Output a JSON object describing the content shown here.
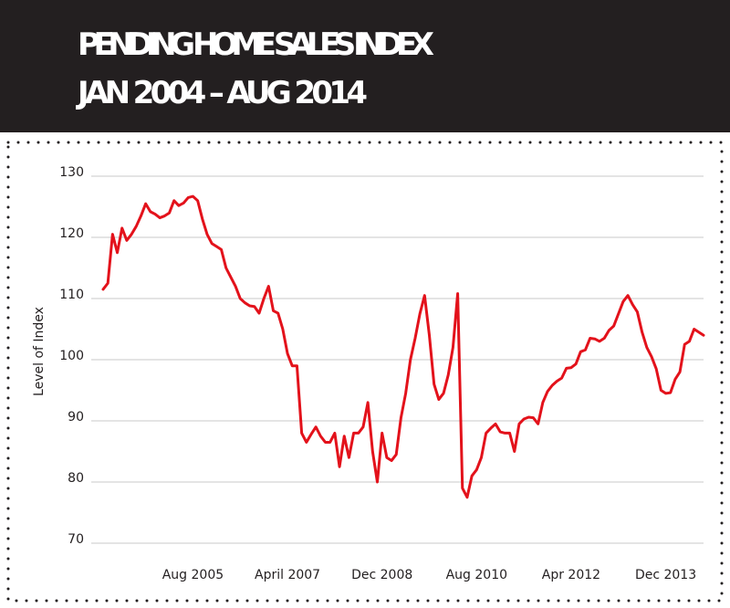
{
  "chart_data": {
    "type": "line",
    "title": "PENDING HOME SALES INDEX",
    "subtitle": "JAN 2004 – AUG 2014",
    "y_label": "Level of Index",
    "color": "#e3121b",
    "grid": true,
    "x": [
      "2004-01",
      "2004-02",
      "2004-03",
      "2004-04",
      "2004-05",
      "2004-06",
      "2004-07",
      "2004-08",
      "2004-09",
      "2004-10",
      "2004-11",
      "2004-12",
      "2005-01",
      "2005-02",
      "2005-03",
      "2005-04",
      "2005-05",
      "2005-06",
      "2005-07",
      "2005-08",
      "2005-09",
      "2005-10",
      "2005-11",
      "2005-12",
      "2006-01",
      "2006-02",
      "2006-03",
      "2006-04",
      "2006-05",
      "2006-06",
      "2006-07",
      "2006-08",
      "2006-09",
      "2006-10",
      "2006-11",
      "2006-12",
      "2007-01",
      "2007-02",
      "2007-03",
      "2007-04",
      "2007-05",
      "2007-06",
      "2007-07",
      "2007-08",
      "2007-09",
      "2007-10",
      "2007-11",
      "2007-12",
      "2008-01",
      "2008-02",
      "2008-03",
      "2008-04",
      "2008-05",
      "2008-06",
      "2008-07",
      "2008-08",
      "2008-09",
      "2008-10",
      "2008-11",
      "2008-12",
      "2009-01",
      "2009-02",
      "2009-03",
      "2009-04",
      "2009-05",
      "2009-06",
      "2009-07",
      "2009-08",
      "2009-09",
      "2009-10",
      "2009-11",
      "2009-12",
      "2010-01",
      "2010-02",
      "2010-03",
      "2010-04",
      "2010-05",
      "2010-06",
      "2010-07",
      "2010-08",
      "2010-09",
      "2010-10",
      "2010-11",
      "2010-12",
      "2011-01",
      "2011-02",
      "2011-03",
      "2011-04",
      "2011-05",
      "2011-06",
      "2011-07",
      "2011-08",
      "2011-09",
      "2011-10",
      "2011-11",
      "2011-12",
      "2012-01",
      "2012-02",
      "2012-03",
      "2012-04",
      "2012-05",
      "2012-06",
      "2012-07",
      "2012-08",
      "2012-09",
      "2012-10",
      "2012-11",
      "2012-12",
      "2013-01",
      "2013-02",
      "2013-03",
      "2013-04",
      "2013-05",
      "2013-06",
      "2013-07",
      "2013-08",
      "2013-09",
      "2013-10",
      "2013-11",
      "2013-12",
      "2014-01",
      "2014-02",
      "2014-03",
      "2014-04",
      "2014-05",
      "2014-06",
      "2014-07",
      "2014-08"
    ],
    "values": [
      111.5,
      112.5,
      120.5,
      117.5,
      121.5,
      119.5,
      120.5,
      121.8,
      123.5,
      125.5,
      124.2,
      123.8,
      123.2,
      123.5,
      124,
      126,
      125.2,
      125.6,
      126.5,
      126.7,
      126,
      123,
      120.5,
      119,
      118.5,
      118,
      115,
      113.5,
      112,
      110,
      109.3,
      108.8,
      108.7,
      107.6,
      110,
      112,
      108,
      107.6,
      105,
      101,
      99,
      99,
      88,
      86.5,
      87.8,
      89,
      87.5,
      86.5,
      86.5,
      88,
      82.5,
      87.5,
      84,
      88,
      88,
      89,
      93,
      85,
      80,
      88,
      84,
      83.5,
      84.5,
      90.5,
      94.5,
      100,
      103.5,
      107.5,
      110.5,
      104,
      96,
      93.5,
      94.5,
      97.5,
      102,
      110.8,
      79,
      77.5,
      81,
      82,
      84,
      88,
      88.8,
      89.5,
      88.2,
      88,
      88,
      85,
      89.5,
      90.3,
      90.6,
      90.5,
      89.5,
      93,
      94.8,
      95.8,
      96.5,
      97,
      98.6,
      98.7,
      99.3,
      101.3,
      101.6,
      103.5,
      103.4,
      103,
      103.5,
      104.8,
      105.5,
      107.5,
      109.5,
      110.5,
      109,
      107.8,
      104.5,
      102,
      100.5,
      98.5,
      95,
      94.5,
      94.6,
      96.8,
      98,
      102.5,
      103,
      105,
      104.5,
      104
    ],
    "xlim": [
      "2004-01",
      "2014-08"
    ],
    "xticks": [
      {
        "value": "2005-08",
        "label": "Aug 2005"
      },
      {
        "value": "2007-04",
        "label": "April 2007"
      },
      {
        "value": "2008-12",
        "label": "Dec 2008"
      },
      {
        "value": "2010-08",
        "label": "Aug 2010"
      },
      {
        "value": "2012-04",
        "label": "Apr 2012"
      },
      {
        "value": "2013-12",
        "label": "Dec 2013"
      }
    ],
    "ylim": [
      70,
      130
    ],
    "yticks": [
      70,
      80,
      90,
      100,
      110,
      120,
      130
    ]
  }
}
